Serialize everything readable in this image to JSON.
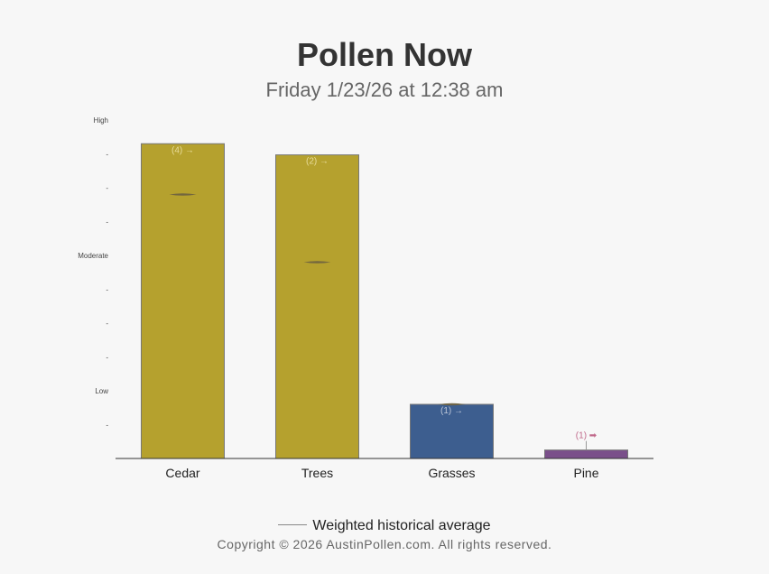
{
  "header": {
    "title": "Pollen Now",
    "subtitle": "Friday 1/23/26 at 12:38 am"
  },
  "legend": {
    "label": "Weighted historical average"
  },
  "footer": {
    "copyright": "Copyright © 2026 AustinPollen.com.  All rights reserved."
  },
  "chart_data": {
    "type": "bar",
    "categories": [
      "Cedar",
      "Trees",
      "Grasses",
      "Pine"
    ],
    "values": [
      9.3,
      8.97,
      1.6,
      0.25
    ],
    "colors": [
      "#b5a12e",
      "#b5a12e",
      "#3d5e8f",
      "#7a4f8a"
    ],
    "bar_labels": [
      "(4) →",
      "(2) →",
      "(1) →",
      "(1) ➡"
    ],
    "historical_average": [
      7.8,
      5.8,
      1.6,
      null
    ],
    "yaxis": {
      "min": 0,
      "max": 10,
      "ticks": [
        {
          "value": 1,
          "label": "-"
        },
        {
          "value": 2,
          "label": "Low"
        },
        {
          "value": 3,
          "label": "-"
        },
        {
          "value": 4,
          "label": "-"
        },
        {
          "value": 5,
          "label": "-"
        },
        {
          "value": 6,
          "label": "Moderate"
        },
        {
          "value": 7,
          "label": "-"
        },
        {
          "value": 8,
          "label": "-"
        },
        {
          "value": 9,
          "label": "-"
        },
        {
          "value": 10,
          "label": "High"
        }
      ]
    },
    "grid": false,
    "legend_position": "bottom"
  }
}
